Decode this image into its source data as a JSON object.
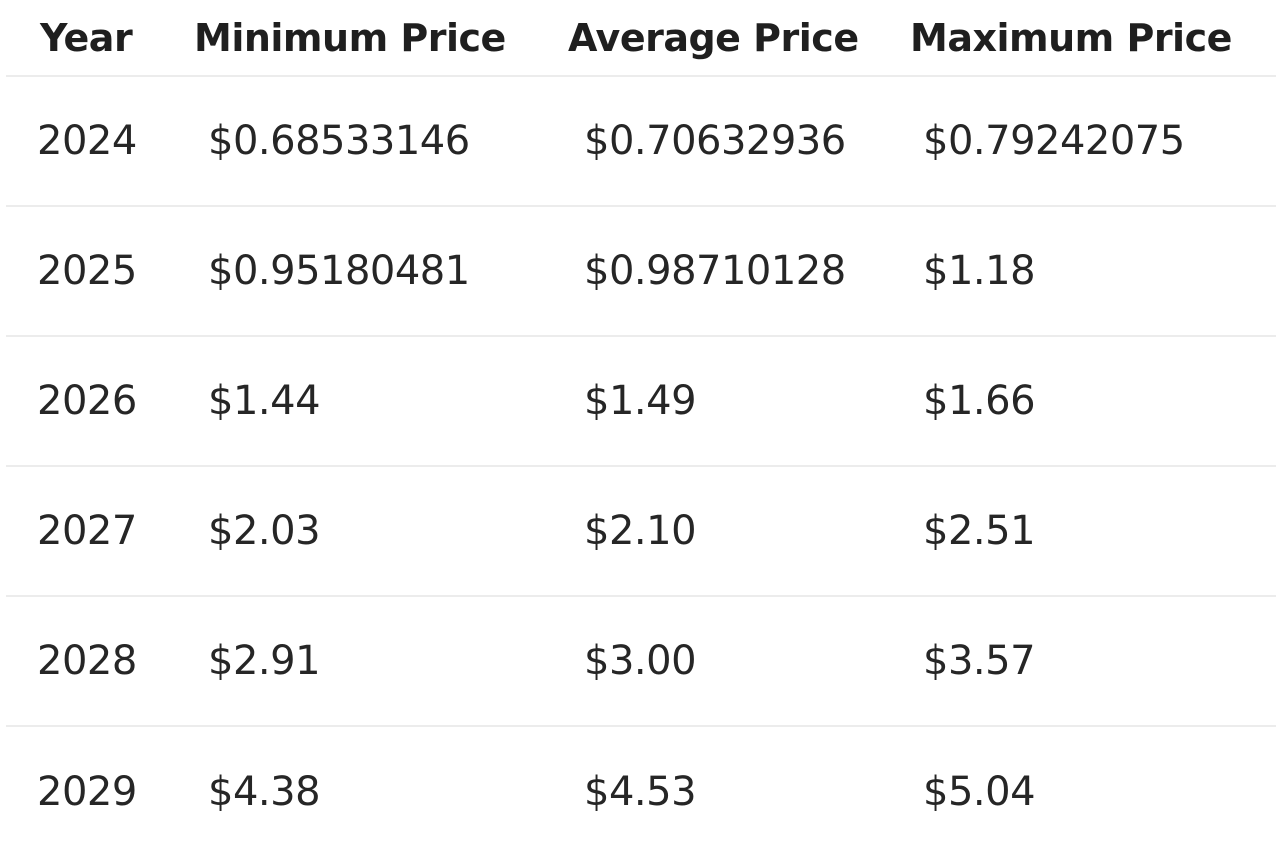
{
  "table": {
    "headers": {
      "year": "Year",
      "min": "Minimum Price",
      "avg": "Average Price",
      "max": "Maximum Price"
    },
    "rows": [
      {
        "year": "2024",
        "min": "$0.68533146",
        "avg": "$0.70632936",
        "max": "$0.79242075"
      },
      {
        "year": "2025",
        "min": "$0.95180481",
        "avg": "$0.98710128",
        "max": "$1.18"
      },
      {
        "year": "2026",
        "min": "$1.44",
        "avg": "$1.49",
        "max": "$1.66"
      },
      {
        "year": "2027",
        "min": "$2.03",
        "avg": "$2.10",
        "max": "$2.51"
      },
      {
        "year": "2028",
        "min": "$2.91",
        "avg": "$3.00",
        "max": "$3.57"
      },
      {
        "year": "2029",
        "min": "$4.38",
        "avg": "$4.53",
        "max": "$5.04"
      }
    ]
  }
}
